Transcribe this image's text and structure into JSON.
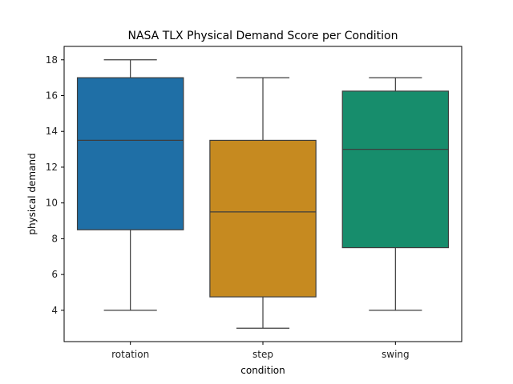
{
  "chart_data": {
    "type": "box",
    "title": "NASA TLX Physical Demand Score per Condition",
    "xlabel": "condition",
    "ylabel": "physical demand",
    "ylim": [
      2.25,
      18.75
    ],
    "yticks": [
      "4",
      "6",
      "8",
      "10",
      "12",
      "14",
      "16",
      "18"
    ],
    "grid": false,
    "categories": [
      "rotation",
      "step",
      "swing"
    ],
    "boxes": [
      {
        "category": "rotation",
        "whisker_low": 4,
        "q1": 8.5,
        "median": 13.5,
        "q3": 17,
        "whisker_high": 18,
        "color": "#1f6fa6"
      },
      {
        "category": "step",
        "whisker_low": 3,
        "q1": 4.75,
        "median": 9.5,
        "q3": 13.5,
        "whisker_high": 17,
        "color": "#c68a20"
      },
      {
        "category": "swing",
        "whisker_low": 4,
        "q1": 7.5,
        "median": 13,
        "q3": 16.25,
        "whisker_high": 17,
        "color": "#178d6c"
      }
    ]
  }
}
